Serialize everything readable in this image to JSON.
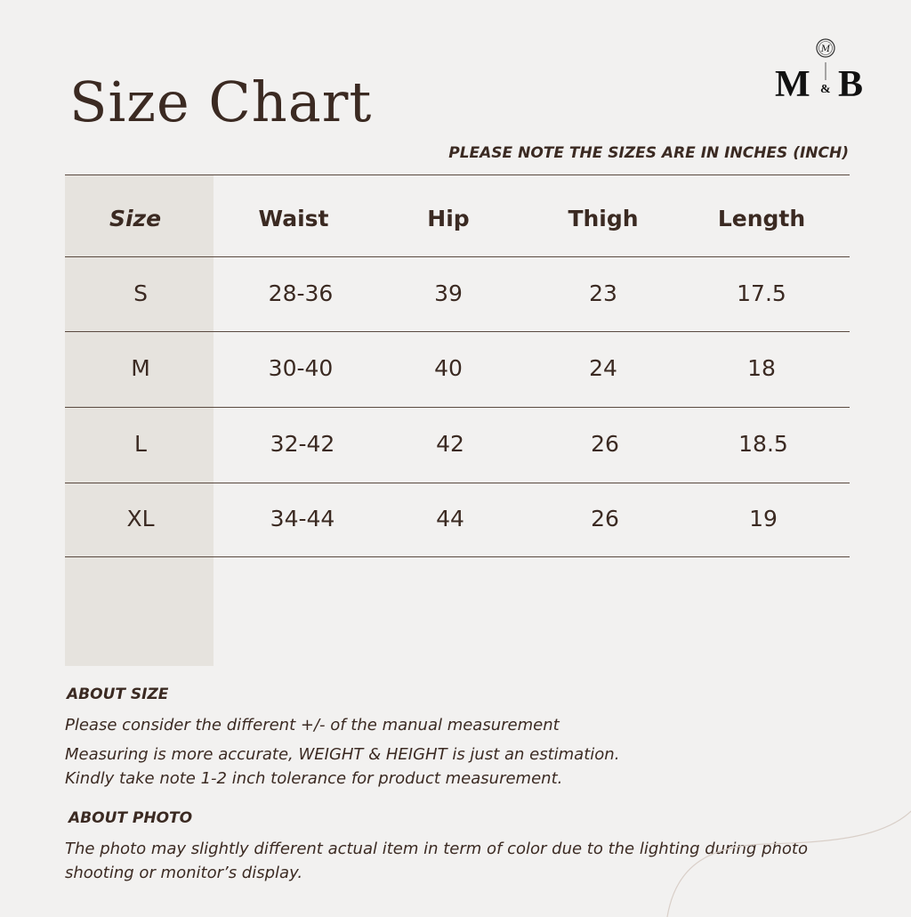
{
  "title": "Size Chart",
  "note": "PLEASE NOTE THE SIZES ARE IN INCHES (INCH)",
  "logo": {
    "text": "M&B"
  },
  "colors": {
    "text": "#3b2a22",
    "background": "#f2f1f0",
    "shaded_column": "#e6e3de"
  },
  "table": {
    "headers": [
      "Size",
      "Waist",
      "Hip",
      "Thigh",
      "Length"
    ],
    "rows": [
      [
        "S",
        "28-36",
        "39",
        "23",
        "17.5"
      ],
      [
        "M",
        "30-40",
        "40",
        "24",
        "18"
      ],
      [
        "L",
        "32-42",
        "42",
        "26",
        "18.5"
      ],
      [
        "XL",
        "34-44",
        "44",
        "26",
        "19"
      ]
    ]
  },
  "about_size": {
    "heading": "ABOUT SIZE",
    "lines": [
      "Please consider the different +/- of the manual measurement",
      "Measuring is more accurate, WEIGHT & HEIGHT is just an estimation.",
      "Kindly take note 1-2 inch tolerance for product measurement."
    ]
  },
  "about_photo": {
    "heading": "ABOUT PHOTO",
    "text": "The photo may slightly different actual item in term of color due to the lighting during photo shooting or monitor’s display."
  }
}
